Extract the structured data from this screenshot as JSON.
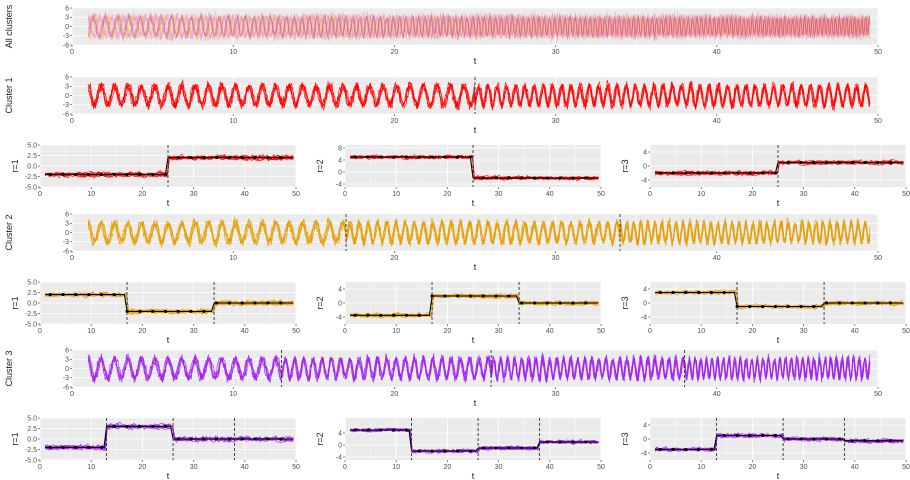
{
  "chart_data": {
    "type": "line",
    "colors": {
      "all": "#e377c2",
      "cluster1": "#ff0000",
      "cluster2": "#e69f00",
      "cluster3": "#a020f0",
      "centroid": "#000000",
      "panel_bg": "#ebebeb",
      "grid": "#ffffff"
    },
    "panels": [
      {
        "id": "all",
        "kind": "wide",
        "ylabel": "All clusters",
        "xlabel": "t",
        "xlim": [
          0,
          50
        ],
        "ylim": [
          -6,
          6
        ],
        "xticks": [
          0,
          10,
          20,
          30,
          40,
          50
        ],
        "yticks": [
          -6,
          -3,
          0,
          3,
          6
        ],
        "colors": [
          "#e377c2",
          "#f0c060",
          "#e04880"
        ],
        "breaks": []
      },
      {
        "id": "c1",
        "kind": "wide",
        "ylabel": "Cluster 1",
        "xlabel": "t",
        "xlim": [
          0,
          50
        ],
        "ylim": [
          -6,
          6
        ],
        "xticks": [
          0,
          10,
          20,
          30,
          40,
          50
        ],
        "yticks": [
          -6,
          -3,
          0,
          3,
          6
        ],
        "colors": [
          "#ff0000"
        ],
        "breaks": [
          25
        ]
      },
      {
        "id": "c1r1",
        "kind": "small",
        "ylabel": "r=1",
        "xlabel": "t",
        "xlim": [
          0,
          50
        ],
        "ylim": [
          -5,
          5
        ],
        "xticks": [
          0,
          10,
          20,
          30,
          40,
          50
        ],
        "ytick_labels": [
          "-5.0",
          "-2.5",
          "0.0",
          "2.5",
          "5.0"
        ],
        "yticks": [
          -5,
          -2.5,
          0,
          2.5,
          5
        ],
        "color": "#ff0000",
        "breaks": [
          25
        ],
        "levels": [
          -2,
          2
        ]
      },
      {
        "id": "c1r2",
        "kind": "small",
        "ylabel": "r=2",
        "xlabel": "t",
        "xlim": [
          0,
          50
        ],
        "ylim": [
          -5,
          9
        ],
        "xticks": [
          0,
          10,
          20,
          30,
          40,
          50
        ],
        "ytick_labels": [
          "-4",
          "0",
          "4",
          "8"
        ],
        "yticks": [
          -4,
          0,
          4,
          8
        ],
        "color": "#ff0000",
        "breaks": [
          25
        ],
        "levels": [
          5,
          -2
        ]
      },
      {
        "id": "c1r3",
        "kind": "small",
        "ylabel": "r=3",
        "xlabel": "t",
        "xlim": [
          0,
          50
        ],
        "ylim": [
          -6,
          6
        ],
        "xticks": [
          0,
          10,
          20,
          30,
          40,
          50
        ],
        "ytick_labels": [
          "-4",
          "0",
          "4"
        ],
        "yticks": [
          -4,
          0,
          4
        ],
        "color": "#ff0000",
        "breaks": [
          25
        ],
        "levels": [
          -2,
          1
        ]
      },
      {
        "id": "c2",
        "kind": "wide",
        "ylabel": "Cluster 2",
        "xlabel": "t",
        "xlim": [
          0,
          50
        ],
        "ylim": [
          -6,
          6
        ],
        "xticks": [
          0,
          10,
          20,
          30,
          40,
          50
        ],
        "yticks": [
          -6,
          -3,
          0,
          3,
          6
        ],
        "colors": [
          "#e69f00"
        ],
        "breaks": [
          17,
          34
        ]
      },
      {
        "id": "c2r1",
        "kind": "small",
        "ylabel": "r=1",
        "xlabel": "t",
        "xlim": [
          0,
          50
        ],
        "ylim": [
          -5,
          5
        ],
        "xticks": [
          0,
          10,
          20,
          30,
          40,
          50
        ],
        "ytick_labels": [
          "-5.0",
          "-2.5",
          "0.0",
          "2.5",
          "5.0"
        ],
        "yticks": [
          -5,
          -2.5,
          0,
          2.5,
          5
        ],
        "color": "#e69f00",
        "breaks": [
          17,
          34
        ],
        "levels": [
          2,
          -2,
          0
        ]
      },
      {
        "id": "c2r2",
        "kind": "small",
        "ylabel": "r=2",
        "xlabel": "t",
        "xlim": [
          0,
          50
        ],
        "ylim": [
          -6,
          6
        ],
        "xticks": [
          0,
          10,
          20,
          30,
          40,
          50
        ],
        "ytick_labels": [
          "-4",
          "0",
          "4"
        ],
        "yticks": [
          -4,
          0,
          4
        ],
        "color": "#e69f00",
        "breaks": [
          17,
          34
        ],
        "levels": [
          -3.5,
          2,
          0
        ]
      },
      {
        "id": "c2r3",
        "kind": "small",
        "ylabel": "r=3",
        "xlabel": "t",
        "xlim": [
          0,
          50
        ],
        "ylim": [
          -6,
          6
        ],
        "xticks": [
          0,
          10,
          20,
          30,
          40,
          50
        ],
        "ytick_labels": [
          "-4",
          "0",
          "4"
        ],
        "yticks": [
          -4,
          0,
          4
        ],
        "color": "#e69f00",
        "breaks": [
          17,
          34
        ],
        "levels": [
          3,
          -1,
          0
        ]
      },
      {
        "id": "c3",
        "kind": "wide",
        "ylabel": "Cluster 3",
        "xlabel": "t",
        "xlim": [
          0,
          50
        ],
        "ylim": [
          -6,
          6
        ],
        "xticks": [
          0,
          10,
          20,
          30,
          40,
          50
        ],
        "yticks": [
          -6,
          -3,
          0,
          3,
          6
        ],
        "colors": [
          "#a020f0"
        ],
        "breaks": [
          13,
          26,
          38
        ]
      },
      {
        "id": "c3r1",
        "kind": "small",
        "ylabel": "r=1",
        "xlabel": "t",
        "xlim": [
          0,
          50
        ],
        "ylim": [
          -5,
          5
        ],
        "xticks": [
          0,
          10,
          20,
          30,
          40,
          50
        ],
        "ytick_labels": [
          "-5.0",
          "-2.5",
          "0.0",
          "2.5",
          "5.0"
        ],
        "yticks": [
          -5,
          -2.5,
          0,
          2.5,
          5
        ],
        "color": "#a020f0",
        "breaks": [
          13,
          26,
          38
        ],
        "levels": [
          -2,
          3,
          0,
          0
        ]
      },
      {
        "id": "c3r2",
        "kind": "small",
        "ylabel": "r=2",
        "xlabel": "t",
        "xlim": [
          0,
          50
        ],
        "ylim": [
          -5,
          9
        ],
        "xticks": [
          0,
          10,
          20,
          30,
          40,
          50
        ],
        "ytick_labels": [
          "-4",
          "0",
          "4"
        ],
        "yticks": [
          -4,
          0,
          4
        ],
        "color": "#a020f0",
        "breaks": [
          13,
          26,
          38
        ],
        "levels": [
          5,
          -2,
          -1,
          1
        ]
      },
      {
        "id": "c3r3",
        "kind": "small",
        "ylabel": "r=3",
        "xlabel": "t",
        "xlim": [
          0,
          50
        ],
        "ylim": [
          -6,
          6
        ],
        "xticks": [
          0,
          10,
          20,
          30,
          40,
          50
        ],
        "ytick_labels": [
          "-4",
          "0",
          "4"
        ],
        "yticks": [
          -4,
          0,
          4
        ],
        "color": "#a020f0",
        "breaks": [
          13,
          26,
          38
        ],
        "levels": [
          -3,
          1,
          0,
          -0.5
        ]
      }
    ]
  }
}
